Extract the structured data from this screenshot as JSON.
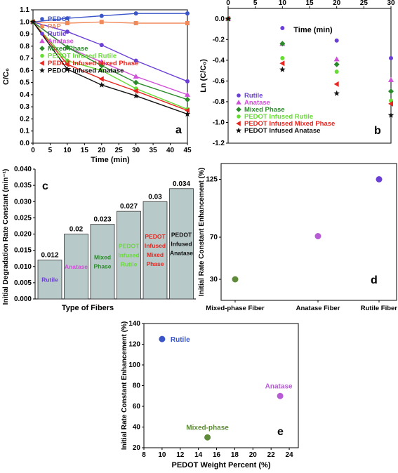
{
  "chart_data": [
    {
      "panel": "a",
      "type": "line",
      "xlabel": "Time (min)",
      "ylabel": "C/C0",
      "xlim": [
        0,
        45
      ],
      "ylim": [
        0.0,
        1.1
      ],
      "xticks": [
        "0",
        "5",
        "10",
        "15",
        "20",
        "25",
        "30",
        "35",
        "40",
        "45"
      ],
      "yticks": [
        "0.0",
        "0.1",
        "0.2",
        "0.3",
        "0.4",
        "0.5",
        "0.6",
        "0.7",
        "0.8",
        "0.9",
        "1.0",
        "1.1"
      ],
      "legend_position": "top-left",
      "x": [
        0,
        10,
        20,
        30,
        45
      ],
      "series": [
        {
          "name": "PEDOT",
          "color": "#3a55c8",
          "marker": "circle",
          "values": [
            1.0,
            1.03,
            1.05,
            1.07,
            1.07
          ]
        },
        {
          "name": "PAP",
          "color": "#f08a5a",
          "marker": "square",
          "values": [
            1.0,
            0.99,
            1.0,
            0.99,
            0.99
          ]
        },
        {
          "name": "Rutile",
          "color": "#6b3fd6",
          "marker": "circle",
          "values": [
            1.0,
            0.92,
            0.81,
            0.68,
            0.51
          ]
        },
        {
          "name": "Anatase",
          "color": "#d04fd8",
          "marker": "triangle",
          "values": [
            1.0,
            0.79,
            0.67,
            0.55,
            0.4
          ]
        },
        {
          "name": "Mixed Phase",
          "color": "#2a8a2a",
          "marker": "diamond",
          "values": [
            1.0,
            0.79,
            0.64,
            0.5,
            0.36
          ]
        },
        {
          "name": "PEDOT Infused Rutile",
          "color": "#66dd33",
          "marker": "circle",
          "values": [
            1.0,
            0.68,
            0.6,
            0.45,
            0.28
          ]
        },
        {
          "name": "PEDOT Infused Mixed Phase",
          "color": "#e8251e",
          "marker": "triangle-left",
          "values": [
            1.0,
            0.65,
            0.53,
            0.43,
            0.27
          ]
        },
        {
          "name": "PEDOT Infused Anatase",
          "color": "#111111",
          "marker": "star",
          "values": [
            1.0,
            0.61,
            0.48,
            0.39,
            0.24
          ]
        }
      ]
    },
    {
      "panel": "b",
      "type": "scatter",
      "xlabel": "Time (min)",
      "ylabel": "Ln (C/C0)",
      "xlim": [
        0,
        30
      ],
      "ylim": [
        -1.2,
        0.1
      ],
      "xticks": [
        "0",
        "5",
        "10",
        "15",
        "20",
        "25",
        "30"
      ],
      "yticks": [
        "0.0",
        "-0.2",
        "-0.4",
        "-0.6",
        "-0.8",
        "-1.0",
        "-1.2"
      ],
      "legend_position": "bottom-left",
      "x": [
        0,
        10,
        20,
        30
      ],
      "series": [
        {
          "name": "Rutile",
          "color": "#6b3fd6",
          "marker": "circle",
          "values": [
            0.0,
            -0.09,
            -0.21,
            -0.38
          ]
        },
        {
          "name": "Anatase",
          "color": "#d04fd8",
          "marker": "triangle",
          "values": [
            0.0,
            -0.24,
            -0.39,
            -0.59
          ]
        },
        {
          "name": "Mixed Phase",
          "color": "#2a8a2a",
          "marker": "diamond",
          "values": [
            0.0,
            -0.24,
            -0.44,
            -0.7
          ]
        },
        {
          "name": "PEDOT Infused Rutile",
          "color": "#66dd33",
          "marker": "circle",
          "values": [
            0.0,
            -0.38,
            -0.51,
            -0.79
          ]
        },
        {
          "name": "PEDOT Infused Mixed Phase",
          "color": "#e8251e",
          "marker": "triangle-left",
          "values": [
            0.0,
            -0.43,
            -0.63,
            -0.82
          ]
        },
        {
          "name": "PEDOT Infused Anatase",
          "color": "#111111",
          "marker": "star",
          "values": [
            0.0,
            -0.49,
            -0.72,
            -0.93
          ]
        }
      ]
    },
    {
      "panel": "c",
      "type": "bar",
      "xlabel": "Type of Fibers",
      "ylabel": "Initial Degradation Rate Constant (min⁻¹)",
      "ylim": [
        0.0,
        0.04
      ],
      "yticks": [
        "0.000",
        "0.005",
        "0.010",
        "0.015",
        "0.020",
        "0.025",
        "0.030",
        "0.035",
        "0.040"
      ],
      "bar_color": "#b8c9c9",
      "values": [
        0.012,
        0.02,
        0.023,
        0.027,
        0.03,
        0.034
      ],
      "value_labels": [
        "0.012",
        "0.02",
        "0.023",
        "0.027",
        "0.03",
        "0.034"
      ],
      "bar_labels": [
        {
          "lines": [
            "Rutile"
          ],
          "color": "#6b3fd6"
        },
        {
          "lines": [
            "Anatase"
          ],
          "color": "#d04fd8"
        },
        {
          "lines": [
            "Mixed",
            "Phase"
          ],
          "color": "#2a8a2a"
        },
        {
          "lines": [
            "PEDOT",
            "Infused",
            "Rutile"
          ],
          "color": "#66dd33"
        },
        {
          "lines": [
            "PEDOT",
            "Infused",
            "Mixed",
            "Phase"
          ],
          "color": "#e8251e"
        },
        {
          "lines": [
            "PEDOT",
            "Infused",
            "Anatase"
          ],
          "color": "#111111"
        }
      ]
    },
    {
      "panel": "d",
      "type": "scatter",
      "ylabel": "Initial Rate Constant Enhancement (%)",
      "categories": [
        "Mixed-phase Fiber",
        "Anatase Fiber",
        "Rutile Fiber"
      ],
      "ylim": [
        10,
        140
      ],
      "yticks": [
        "30",
        "70",
        "125"
      ],
      "values": [
        30,
        71,
        125
      ],
      "colors": [
        "#5e8a3a",
        "#b85cd6",
        "#6b3fd6"
      ]
    },
    {
      "panel": "e",
      "type": "scatter",
      "xlabel": "PEDOT Weight Percent (%)",
      "ylabel": "Initial Rate Constant Enhancement (%)",
      "xlim": [
        8,
        25
      ],
      "ylim": [
        20,
        140
      ],
      "xticks": [
        "8",
        "10",
        "12",
        "14",
        "16",
        "18",
        "20",
        "22",
        "24"
      ],
      "yticks": [
        "20",
        "40",
        "60",
        "80",
        "100",
        "120",
        "140"
      ],
      "points": [
        {
          "label": "Rutile",
          "x": 10,
          "y": 125,
          "color": "#3a55c8"
        },
        {
          "label": "Mixed-phase",
          "x": 15,
          "y": 30,
          "color": "#5e8a3a"
        },
        {
          "label": "Anatase",
          "x": 23,
          "y": 70,
          "color": "#b85cd6"
        }
      ]
    }
  ]
}
